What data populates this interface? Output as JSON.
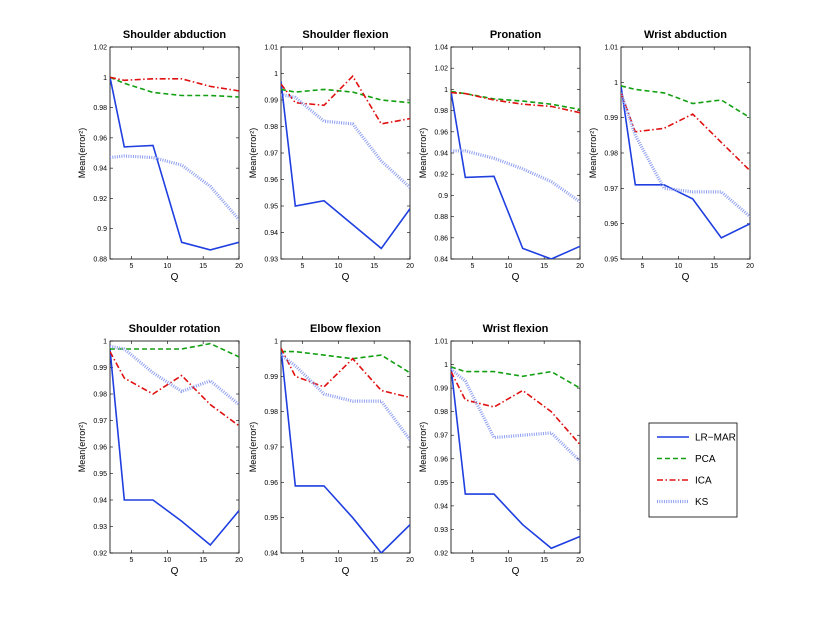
{
  "figure": {
    "legend": {
      "placement": "right, beside bottom row",
      "entries": [
        "LR−MAR",
        "PCA",
        "ICA",
        "KS"
      ]
    }
  },
  "colors": {
    "LR-MAR": "#1f3fe0",
    "PCA": "#12a012",
    "ICA": "#e01010",
    "KS": "#8f9ff0"
  },
  "chart_data": [
    {
      "type": "line",
      "title": "Shoulder abduction",
      "xlabel": "Q",
      "ylabel": "Mean(error²)",
      "xlim": [
        2,
        20
      ],
      "ylim": [
        0.88,
        1.02
      ],
      "xticks": [
        5,
        10,
        15,
        20
      ],
      "yticks": [
        0.88,
        0.9,
        0.92,
        0.94,
        0.96,
        0.98,
        1,
        1.02
      ],
      "ytick_labels": [
        "0.88",
        "0.9",
        "0.92",
        "0.94",
        "0.96",
        "0.98",
        "1",
        "1.02"
      ],
      "x": [
        2,
        4,
        8,
        12,
        16,
        20
      ],
      "series": [
        {
          "name": "LR-MAR",
          "values": [
            1.0,
            0.954,
            0.955,
            0.891,
            0.886,
            0.891
          ]
        },
        {
          "name": "PCA",
          "values": [
            1.0,
            0.996,
            0.99,
            0.988,
            0.988,
            0.987
          ]
        },
        {
          "name": "ICA",
          "values": [
            1.0,
            0.998,
            0.999,
            0.999,
            0.994,
            0.991
          ]
        },
        {
          "name": "KS",
          "values": [
            0.947,
            0.948,
            0.947,
            0.942,
            0.928,
            0.906
          ]
        }
      ]
    },
    {
      "type": "line",
      "title": "Shoulder flexion",
      "xlabel": "Q",
      "ylabel": "Mean(error²)",
      "xlim": [
        2,
        20
      ],
      "ylim": [
        0.93,
        1.01
      ],
      "xticks": [
        5,
        10,
        15,
        20
      ],
      "yticks": [
        0.93,
        0.94,
        0.95,
        0.96,
        0.97,
        0.98,
        0.99,
        1,
        1.01
      ],
      "ytick_labels": [
        "0.93",
        "0.94",
        "0.95",
        "0.96",
        "0.97",
        "0.98",
        "0.99",
        "1",
        "1.01"
      ],
      "x": [
        2,
        4,
        8,
        12,
        16,
        20
      ],
      "series": [
        {
          "name": "LR-MAR",
          "values": [
            0.997,
            0.95,
            0.952,
            0.943,
            0.934,
            0.949
          ]
        },
        {
          "name": "PCA",
          "values": [
            0.994,
            0.993,
            0.994,
            0.993,
            0.99,
            0.989
          ]
        },
        {
          "name": "ICA",
          "values": [
            0.996,
            0.989,
            0.988,
            0.999,
            0.981,
            0.983
          ]
        },
        {
          "name": "KS",
          "values": [
            0.992,
            0.991,
            0.982,
            0.981,
            0.967,
            0.957
          ]
        }
      ]
    },
    {
      "type": "line",
      "title": "Pronation",
      "xlabel": "Q",
      "ylabel": "Mean(error²)",
      "xlim": [
        2,
        20
      ],
      "ylim": [
        0.84,
        1.04
      ],
      "xticks": [
        5,
        10,
        15,
        20
      ],
      "yticks": [
        0.84,
        0.86,
        0.88,
        0.9,
        0.92,
        0.94,
        0.96,
        0.98,
        1,
        1.02,
        1.04
      ],
      "ytick_labels": [
        "0.84",
        "0.86",
        "0.88",
        "0.9",
        "0.92",
        "0.94",
        "0.96",
        "0.98",
        "1",
        "1.02",
        "1.04"
      ],
      "x": [
        2,
        4,
        8,
        12,
        16,
        20
      ],
      "series": [
        {
          "name": "LR-MAR",
          "values": [
            0.998,
            0.917,
            0.918,
            0.85,
            0.84,
            0.852
          ]
        },
        {
          "name": "PCA",
          "values": [
            0.998,
            0.996,
            0.991,
            0.989,
            0.986,
            0.981
          ]
        },
        {
          "name": "ICA",
          "values": [
            0.997,
            0.996,
            0.99,
            0.986,
            0.984,
            0.978
          ]
        },
        {
          "name": "KS",
          "values": [
            0.942,
            0.942,
            0.935,
            0.925,
            0.913,
            0.894
          ]
        }
      ]
    },
    {
      "type": "line",
      "title": "Wrist abduction",
      "xlabel": "Q",
      "ylabel": "Mean(error²)",
      "xlim": [
        2,
        20
      ],
      "ylim": [
        0.95,
        1.01
      ],
      "xticks": [
        5,
        10,
        15,
        20
      ],
      "yticks": [
        0.95,
        0.96,
        0.97,
        0.98,
        0.99,
        1,
        1.01
      ],
      "ytick_labels": [
        "0.95",
        "0.96",
        "0.97",
        "0.98",
        "0.99",
        "1",
        "1.01"
      ],
      "x": [
        2,
        4,
        8,
        12,
        16,
        20
      ],
      "series": [
        {
          "name": "LR-MAR",
          "values": [
            0.999,
            0.971,
            0.971,
            0.967,
            0.956,
            0.96
          ]
        },
        {
          "name": "PCA",
          "values": [
            0.999,
            0.998,
            0.997,
            0.994,
            0.995,
            0.99
          ]
        },
        {
          "name": "ICA",
          "values": [
            0.997,
            0.986,
            0.987,
            0.991,
            0.983,
            0.975
          ]
        },
        {
          "name": "KS",
          "values": [
            0.997,
            0.985,
            0.97,
            0.969,
            0.969,
            0.962
          ]
        }
      ]
    },
    {
      "type": "line",
      "title": "Shoulder rotation",
      "xlabel": "Q",
      "ylabel": "Mean(error²)",
      "xlim": [
        2,
        20
      ],
      "ylim": [
        0.92,
        1.0
      ],
      "xticks": [
        5,
        10,
        15,
        20
      ],
      "yticks": [
        0.92,
        0.93,
        0.94,
        0.95,
        0.96,
        0.97,
        0.98,
        0.99,
        1
      ],
      "ytick_labels": [
        "0.92",
        "0.93",
        "0.94",
        "0.95",
        "0.96",
        "0.97",
        "0.98",
        "0.99",
        "1"
      ],
      "x": [
        2,
        4,
        8,
        12,
        16,
        20
      ],
      "series": [
        {
          "name": "LR-MAR",
          "values": [
            0.997,
            0.94,
            0.94,
            0.932,
            0.923,
            0.936
          ]
        },
        {
          "name": "PCA",
          "values": [
            0.997,
            0.997,
            0.997,
            0.997,
            0.999,
            0.994
          ]
        },
        {
          "name": "ICA",
          "values": [
            0.996,
            0.986,
            0.98,
            0.987,
            0.976,
            0.968
          ]
        },
        {
          "name": "KS",
          "values": [
            0.998,
            0.997,
            0.988,
            0.981,
            0.985,
            0.976
          ]
        }
      ]
    },
    {
      "type": "line",
      "title": "Elbow flexion",
      "xlabel": "Q",
      "ylabel": "Mean(error²)",
      "xlim": [
        2,
        20
      ],
      "ylim": [
        0.94,
        1.0
      ],
      "xticks": [
        5,
        10,
        15,
        20
      ],
      "yticks": [
        0.94,
        0.95,
        0.96,
        0.97,
        0.98,
        0.99,
        1
      ],
      "ytick_labels": [
        "0.94",
        "0.95",
        "0.96",
        "0.97",
        "0.98",
        "0.99",
        "1"
      ],
      "x": [
        2,
        4,
        8,
        12,
        16,
        20
      ],
      "series": [
        {
          "name": "LR-MAR",
          "values": [
            0.998,
            0.959,
            0.959,
            0.95,
            0.94,
            0.948
          ]
        },
        {
          "name": "PCA",
          "values": [
            0.997,
            0.997,
            0.996,
            0.995,
            0.996,
            0.991
          ]
        },
        {
          "name": "ICA",
          "values": [
            0.998,
            0.99,
            0.987,
            0.995,
            0.986,
            0.984
          ]
        },
        {
          "name": "KS",
          "values": [
            0.996,
            0.993,
            0.985,
            0.983,
            0.983,
            0.972
          ]
        }
      ]
    },
    {
      "type": "line",
      "title": "Wrist flexion",
      "xlabel": "Q",
      "ylabel": "Mean(error²)",
      "xlim": [
        2,
        20
      ],
      "ylim": [
        0.92,
        1.01
      ],
      "xticks": [
        5,
        10,
        15,
        20
      ],
      "yticks": [
        0.92,
        0.93,
        0.94,
        0.95,
        0.96,
        0.97,
        0.98,
        0.99,
        1,
        1.01
      ],
      "ytick_labels": [
        "0.92",
        "0.93",
        "0.94",
        "0.95",
        "0.96",
        "0.97",
        "0.98",
        "0.99",
        "1",
        "1.01"
      ],
      "x": [
        2,
        4,
        8,
        12,
        16,
        20
      ],
      "series": [
        {
          "name": "LR-MAR",
          "values": [
            0.999,
            0.945,
            0.945,
            0.932,
            0.922,
            0.927
          ]
        },
        {
          "name": "PCA",
          "values": [
            0.999,
            0.997,
            0.997,
            0.995,
            0.997,
            0.99
          ]
        },
        {
          "name": "ICA",
          "values": [
            0.997,
            0.985,
            0.982,
            0.989,
            0.98,
            0.966
          ]
        },
        {
          "name": "KS",
          "values": [
            0.998,
            0.993,
            0.969,
            0.97,
            0.971,
            0.959
          ]
        }
      ]
    }
  ]
}
